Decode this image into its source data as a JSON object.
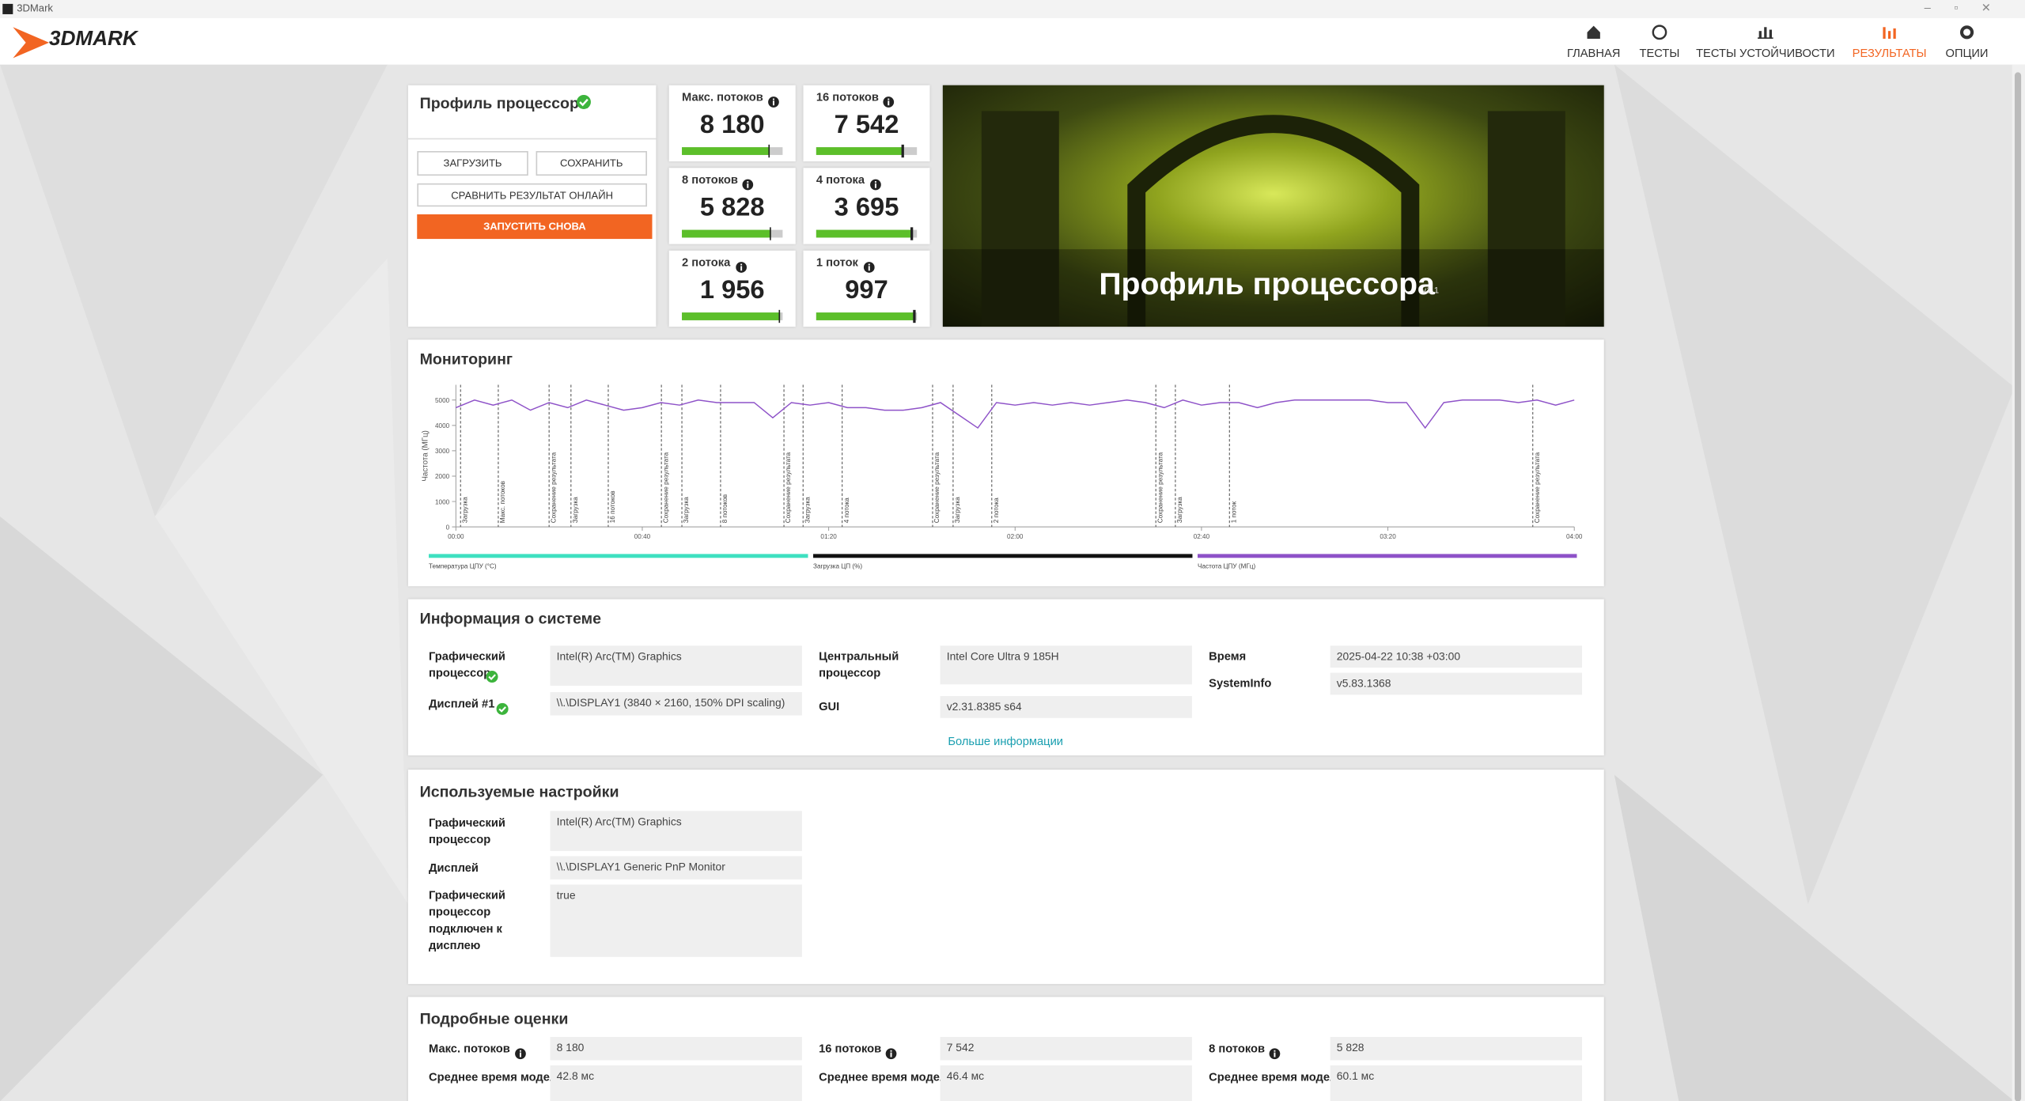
{
  "window_title": "3DMark",
  "logo": "3DMARK",
  "nav": [
    "ГЛАВНАЯ",
    "ТЕСТЫ",
    "ТЕСТЫ УСТОЙЧИВОСТИ",
    "РЕЗУЛЬТАТЫ",
    "ОПЦИИ"
  ],
  "profile": {
    "title": "Профиль процессора",
    "buttons": [
      "ЗАГРУЗИТЬ",
      "СОХРАНИТЬ",
      "СРАВНИТЬ РЕЗУЛЬТАТ ОНЛАЙН",
      "ЗАПУСТИТЬ СНОВА"
    ]
  },
  "scores": [
    {
      "label": "Макс. потоков",
      "value": "8 180"
    },
    {
      "label": "16 потоков",
      "value": "7 542"
    },
    {
      "label": "8 потоков",
      "value": "5 828"
    },
    {
      "label": "4 потока",
      "value": "3 695"
    },
    {
      "label": "2 потока",
      "value": "1 956"
    },
    {
      "label": "1 поток",
      "value": "997"
    }
  ],
  "banner": {
    "title": "Профиль процессора",
    "version": "v1.1"
  },
  "monitoring": {
    "title": "Мониторинг",
    "chart_data": {
      "type": "line",
      "y_label": "Частота (МГц)",
      "x": [
        0,
        4,
        8,
        12,
        16,
        20,
        24,
        28,
        32,
        36,
        40,
        44,
        48,
        52,
        56,
        60,
        64,
        68,
        72,
        76,
        80,
        84,
        88,
        92,
        96,
        100,
        104,
        108,
        112,
        116,
        120,
        124,
        128,
        132,
        136,
        140,
        144,
        148,
        152,
        156,
        160,
        164,
        168,
        172,
        176,
        180,
        184,
        188,
        192,
        196,
        200,
        204,
        208,
        212,
        216,
        220,
        224,
        228,
        232,
        236,
        240
      ],
      "series": [
        {
          "name": "Частота ЦПУ (МГц)",
          "color": "#8e52c8",
          "values": [
            4700,
            5000,
            4800,
            5000,
            4600,
            4900,
            4700,
            5000,
            4800,
            4600,
            4700,
            4900,
            4800,
            5000,
            4900,
            4900,
            4900,
            4300,
            4900,
            4800,
            4900,
            4700,
            4700,
            4600,
            4600,
            4700,
            4900,
            4400,
            3900,
            4900,
            4800,
            4900,
            4800,
            4900,
            4800,
            4900,
            5000,
            4900,
            4700,
            5000,
            4800,
            4900,
            4900,
            4700,
            4900,
            5000,
            5000,
            5000,
            5000,
            5000,
            4900,
            4900,
            3900,
            4900,
            5000,
            5000,
            5000,
            4900,
            5000,
            4800,
            5000
          ]
        }
      ],
      "legend": [
        {
          "name": "Температура ЦПУ (°C)",
          "color": "#3ee0c0"
        },
        {
          "name": "Загрузка ЦП (%)",
          "color": "#111111"
        },
        {
          "name": "Частота ЦПУ (МГц)",
          "color": "#8e52c8"
        }
      ],
      "xlim": [
        0,
        240
      ],
      "ylim": [
        0,
        5600
      ],
      "yticks": [
        0,
        1000,
        2000,
        3000,
        4000,
        5000
      ],
      "xticks": [
        {
          "value": 0,
          "label": "00:00"
        },
        {
          "value": 40,
          "label": "00:40"
        },
        {
          "value": 80,
          "label": "01:20"
        },
        {
          "value": 120,
          "label": "02:00"
        },
        {
          "value": 160,
          "label": "02:40"
        },
        {
          "value": 200,
          "label": "03:20"
        },
        {
          "value": 240,
          "label": "04:00"
        }
      ],
      "markers": [
        {
          "time": 1,
          "label": "Загрузка"
        },
        {
          "time": 9.1,
          "label": "Макс. потоков"
        },
        {
          "time": 20,
          "label": "Сохранение результата"
        },
        {
          "time": 24.7,
          "label": "Загрузка"
        },
        {
          "time": 32.7,
          "label": "16 потоков"
        },
        {
          "time": 44.1,
          "label": "Сохранение результата"
        },
        {
          "time": 48.5,
          "label": "Загрузка"
        },
        {
          "time": 56.8,
          "label": "8 потоков"
        },
        {
          "time": 70.4,
          "label": "Сохранение результата"
        },
        {
          "time": 74.5,
          "label": "Загрузка"
        },
        {
          "time": 82.9,
          "label": "4 потока"
        },
        {
          "time": 102.3,
          "label": "Сохранение результата"
        },
        {
          "time": 106.7,
          "label": "Загрузка"
        },
        {
          "time": 115,
          "label": "2 потока"
        },
        {
          "time": 150.2,
          "label": "Сохранение результата"
        },
        {
          "time": 154.4,
          "label": "Загрузка"
        },
        {
          "time": 166,
          "label": "1 поток"
        },
        {
          "time": 231.1,
          "label": "Сохранение результата"
        }
      ]
    }
  },
  "system_info": {
    "title": "Информация о системе",
    "rows": [
      {
        "label": "Графический процессор",
        "value": "Intel(R) Arc(TM) Graphics"
      },
      {
        "label": "Дисплей #1",
        "value": "\\\\.\\DISPLAY1 (3840 × 2160, 150% DPI scaling)"
      },
      {
        "label": "Центральный процессор",
        "value": "Intel Core Ultra 9 185H"
      },
      {
        "label": "GUI",
        "value": "v2.31.8385 s64"
      },
      {
        "label": "Время",
        "value": "2025-04-22 10:38 +03:00"
      },
      {
        "label": "SystemInfo",
        "value": "v5.83.1368"
      }
    ],
    "more": "Больше информации"
  },
  "settings": {
    "title": "Используемые настройки",
    "rows": [
      {
        "label": "Графический процессор",
        "value": "Intel(R) Arc(TM) Graphics"
      },
      {
        "label": "Дисплей",
        "value": "\\\\.\\DISPLAY1 Generic PnP Monitor"
      },
      {
        "label": "Графический процессор подключен к дисплею",
        "value": "true"
      }
    ]
  },
  "detailed": {
    "title": "Подробные оценки",
    "rows": [
      {
        "label": "Макс. потоков",
        "value": "8 180"
      },
      {
        "label": "16 потоков",
        "value": "7 542"
      },
      {
        "label": "8 потоков",
        "value": "5 828"
      },
      {
        "label": "Среднее время моделирования",
        "value": "42.8 мс"
      },
      {
        "label": "Среднее время моделирования",
        "value": "46.4 мс"
      },
      {
        "label": "Среднее время моделирования",
        "value": "60.1 мс"
      }
    ]
  }
}
